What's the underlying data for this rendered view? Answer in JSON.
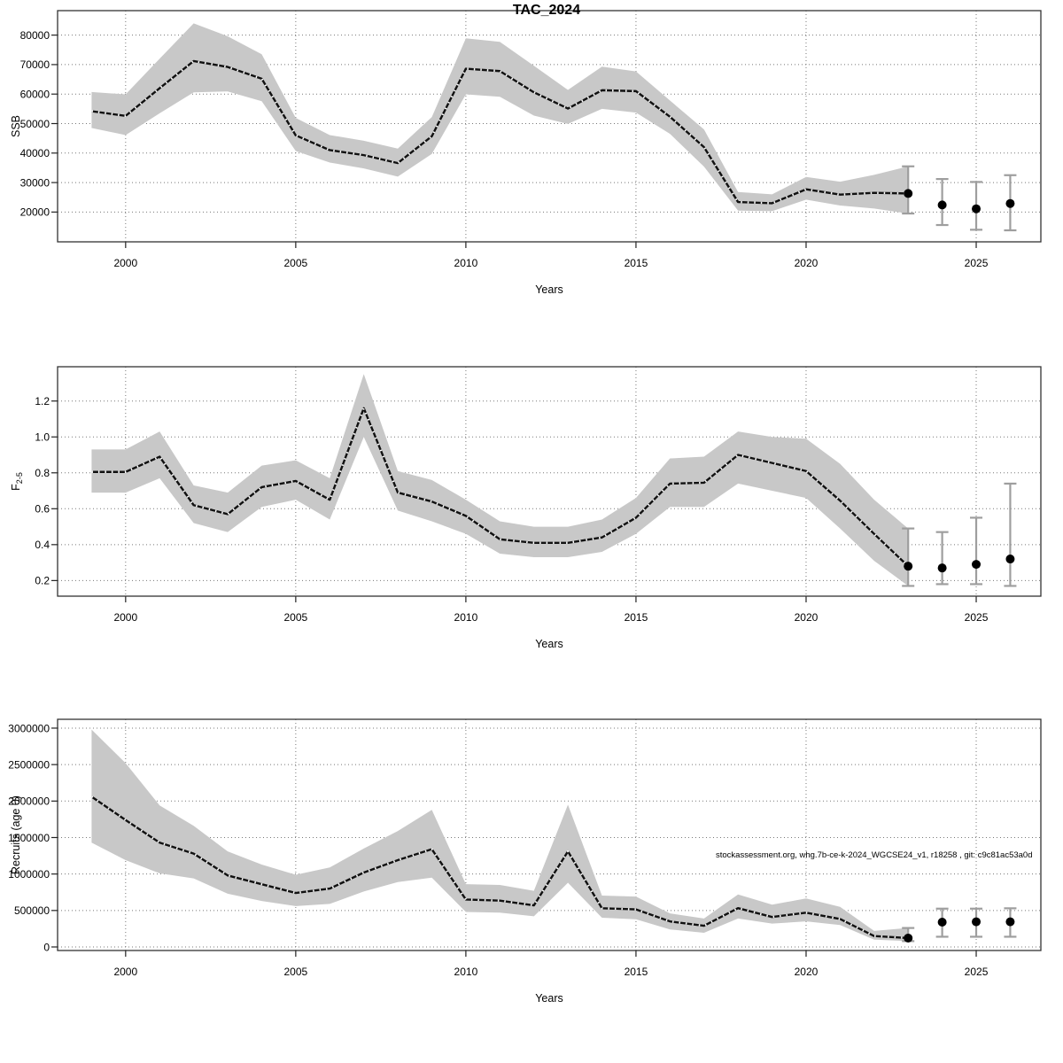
{
  "title": "TAC_2024",
  "watermark": "stockassessment.org, whg.7b-ce-k-2024_WGCSE24_v1, r18258 , git: c9c81ac53a0d",
  "colors": {
    "band": "#c8c8c8",
    "line": "#111111",
    "line_dash_overlay": "#ffffff",
    "error_bar": "#9e9e9e",
    "dot": "#000000",
    "grid": "#787878",
    "box": "#333333",
    "tick": "#222222",
    "background": "#ffffff"
  },
  "chart_data": [
    {
      "id": "ssb",
      "type": "line",
      "title": "TAC_2024",
      "ylabel": "SSB",
      "xlabel": "Years",
      "grid": true,
      "legend": "none",
      "xlim": [
        1998.0,
        2026.9
      ],
      "ylim": [
        9900,
        88300
      ],
      "xticks": [
        2000,
        2005,
        2010,
        2015,
        2020,
        2025
      ],
      "yticks": [
        20000,
        30000,
        40000,
        50000,
        60000,
        70000,
        80000
      ],
      "ytick_labels": [
        "20000",
        "30000",
        "40000",
        "50000",
        "60000",
        "70000",
        "80000"
      ],
      "x": [
        1999,
        2000,
        2001,
        2002,
        2003,
        2004,
        2005,
        2006,
        2007,
        2008,
        2009,
        2010,
        2011,
        2012,
        2013,
        2014,
        2015,
        2016,
        2017,
        2018,
        2019,
        2020,
        2021,
        2022,
        2023
      ],
      "values": [
        54200,
        52600,
        62000,
        71200,
        69200,
        65200,
        46000,
        41000,
        39300,
        36600,
        45700,
        68600,
        67800,
        60600,
        55100,
        61300,
        61000,
        52300,
        42000,
        23400,
        23000,
        27700,
        25900,
        26500,
        26300
      ],
      "band_lower": [
        48500,
        46100,
        53500,
        60600,
        60900,
        57600,
        40700,
        36800,
        34800,
        32000,
        39700,
        59900,
        59100,
        52700,
        49900,
        55000,
        53700,
        46500,
        35400,
        20500,
        20300,
        24200,
        22200,
        21200,
        19500
      ],
      "band_upper": [
        60700,
        59900,
        72000,
        84000,
        79600,
        73500,
        51900,
        46100,
        44200,
        41500,
        52200,
        78900,
        77700,
        69600,
        61400,
        69300,
        67700,
        57800,
        48000,
        26800,
        26000,
        31900,
        30300,
        32600,
        35500
      ],
      "forecast": [
        {
          "year": 2023,
          "value": 26300,
          "lo": 19500,
          "hi": 35500
        },
        {
          "year": 2024,
          "value": 22400,
          "lo": 15600,
          "hi": 31200
        },
        {
          "year": 2025,
          "value": 21100,
          "lo": 14000,
          "hi": 30200
        },
        {
          "year": 2026,
          "value": 22900,
          "lo": 13800,
          "hi": 32500
        }
      ]
    },
    {
      "id": "f-mortality",
      "type": "line",
      "title": "",
      "ylabel": {
        "main": "F",
        "sub": "2-5"
      },
      "xlabel": "Years",
      "grid": true,
      "legend": "none",
      "xlim": [
        1998.0,
        2026.9
      ],
      "ylim": [
        0.113,
        1.391
      ],
      "xticks": [
        2000,
        2005,
        2010,
        2015,
        2020,
        2025
      ],
      "yticks": [
        0.2,
        0.4,
        0.6,
        0.8,
        1.0,
        1.2
      ],
      "ytick_labels": [
        "0.2",
        "0.4",
        "0.6",
        "0.8",
        "1.0",
        "1.2"
      ],
      "x": [
        1999,
        2000,
        2001,
        2002,
        2003,
        2004,
        2005,
        2006,
        2007,
        2008,
        2009,
        2010,
        2011,
        2012,
        2013,
        2014,
        2015,
        2016,
        2017,
        2018,
        2019,
        2020,
        2021,
        2022,
        2023
      ],
      "values": [
        0.805,
        0.805,
        0.89,
        0.62,
        0.57,
        0.72,
        0.755,
        0.65,
        1.16,
        0.69,
        0.64,
        0.56,
        0.43,
        0.41,
        0.41,
        0.44,
        0.55,
        0.74,
        0.745,
        0.9,
        0.855,
        0.81,
        0.645,
        0.46,
        0.28
      ],
      "band_lower": [
        0.69,
        0.69,
        0.77,
        0.52,
        0.47,
        0.61,
        0.65,
        0.54,
        1.0,
        0.59,
        0.53,
        0.46,
        0.35,
        0.33,
        0.33,
        0.36,
        0.46,
        0.61,
        0.61,
        0.74,
        0.7,
        0.66,
        0.49,
        0.31,
        0.17
      ],
      "band_upper": [
        0.93,
        0.93,
        1.03,
        0.73,
        0.69,
        0.84,
        0.87,
        0.77,
        1.35,
        0.81,
        0.76,
        0.65,
        0.53,
        0.5,
        0.5,
        0.54,
        0.66,
        0.88,
        0.89,
        1.03,
        1.0,
        0.99,
        0.85,
        0.65,
        0.49
      ],
      "forecast": [
        {
          "year": 2023,
          "value": 0.28,
          "lo": 0.17,
          "hi": 0.49
        },
        {
          "year": 2024,
          "value": 0.27,
          "lo": 0.18,
          "hi": 0.47
        },
        {
          "year": 2025,
          "value": 0.29,
          "lo": 0.18,
          "hi": 0.55
        },
        {
          "year": 2026,
          "value": 0.32,
          "lo": 0.17,
          "hi": 0.74
        }
      ]
    },
    {
      "id": "recruits",
      "type": "line",
      "title": "",
      "ylabel": "Recruits (age 0)",
      "xlabel": "Years",
      "grid": true,
      "legend": "none",
      "xlim": [
        1998.0,
        2026.9
      ],
      "ylim": [
        -48600,
        3121000
      ],
      "xticks": [
        2000,
        2005,
        2010,
        2015,
        2020,
        2025
      ],
      "yticks": [
        0,
        500000,
        1000000,
        1500000,
        2000000,
        2500000,
        3000000
      ],
      "ytick_labels": [
        "0",
        "500000",
        "1000000",
        "1500000",
        "2000000",
        "2500000",
        "3000000"
      ],
      "x": [
        1999,
        2000,
        2001,
        2002,
        2003,
        2004,
        2005,
        2006,
        2007,
        2008,
        2009,
        2010,
        2011,
        2012,
        2013,
        2014,
        2015,
        2016,
        2017,
        2018,
        2019,
        2020,
        2021,
        2022,
        2023
      ],
      "values": [
        2060000,
        1740000,
        1430000,
        1280000,
        980000,
        860000,
        740000,
        800000,
        1020000,
        1190000,
        1340000,
        650000,
        635000,
        570000,
        1310000,
        530000,
        515000,
        350000,
        290000,
        532000,
        411000,
        470000,
        383000,
        150000,
        122000
      ],
      "band_lower": [
        1430000,
        1190000,
        1010000,
        940000,
        730000,
        630000,
        560000,
        590000,
        760000,
        890000,
        950000,
        480000,
        470000,
        420000,
        880000,
        400000,
        380000,
        240000,
        195000,
        390000,
        320000,
        350000,
        300000,
        100000,
        80000
      ],
      "band_upper": [
        2980000,
        2520000,
        1940000,
        1660000,
        1310000,
        1130000,
        990000,
        1090000,
        1350000,
        1590000,
        1880000,
        860000,
        850000,
        770000,
        1950000,
        705000,
        690000,
        460000,
        390000,
        720000,
        580000,
        665000,
        550000,
        220000,
        260000
      ],
      "forecast": [
        {
          "year": 2023,
          "value": 122000,
          "lo": 80000,
          "hi": 260000
        },
        {
          "year": 2024,
          "value": 340000,
          "lo": 140000,
          "hi": 525000
        },
        {
          "year": 2025,
          "value": 345000,
          "lo": 140000,
          "hi": 525000
        },
        {
          "year": 2026,
          "value": 345000,
          "lo": 140000,
          "hi": 530000
        }
      ]
    }
  ]
}
